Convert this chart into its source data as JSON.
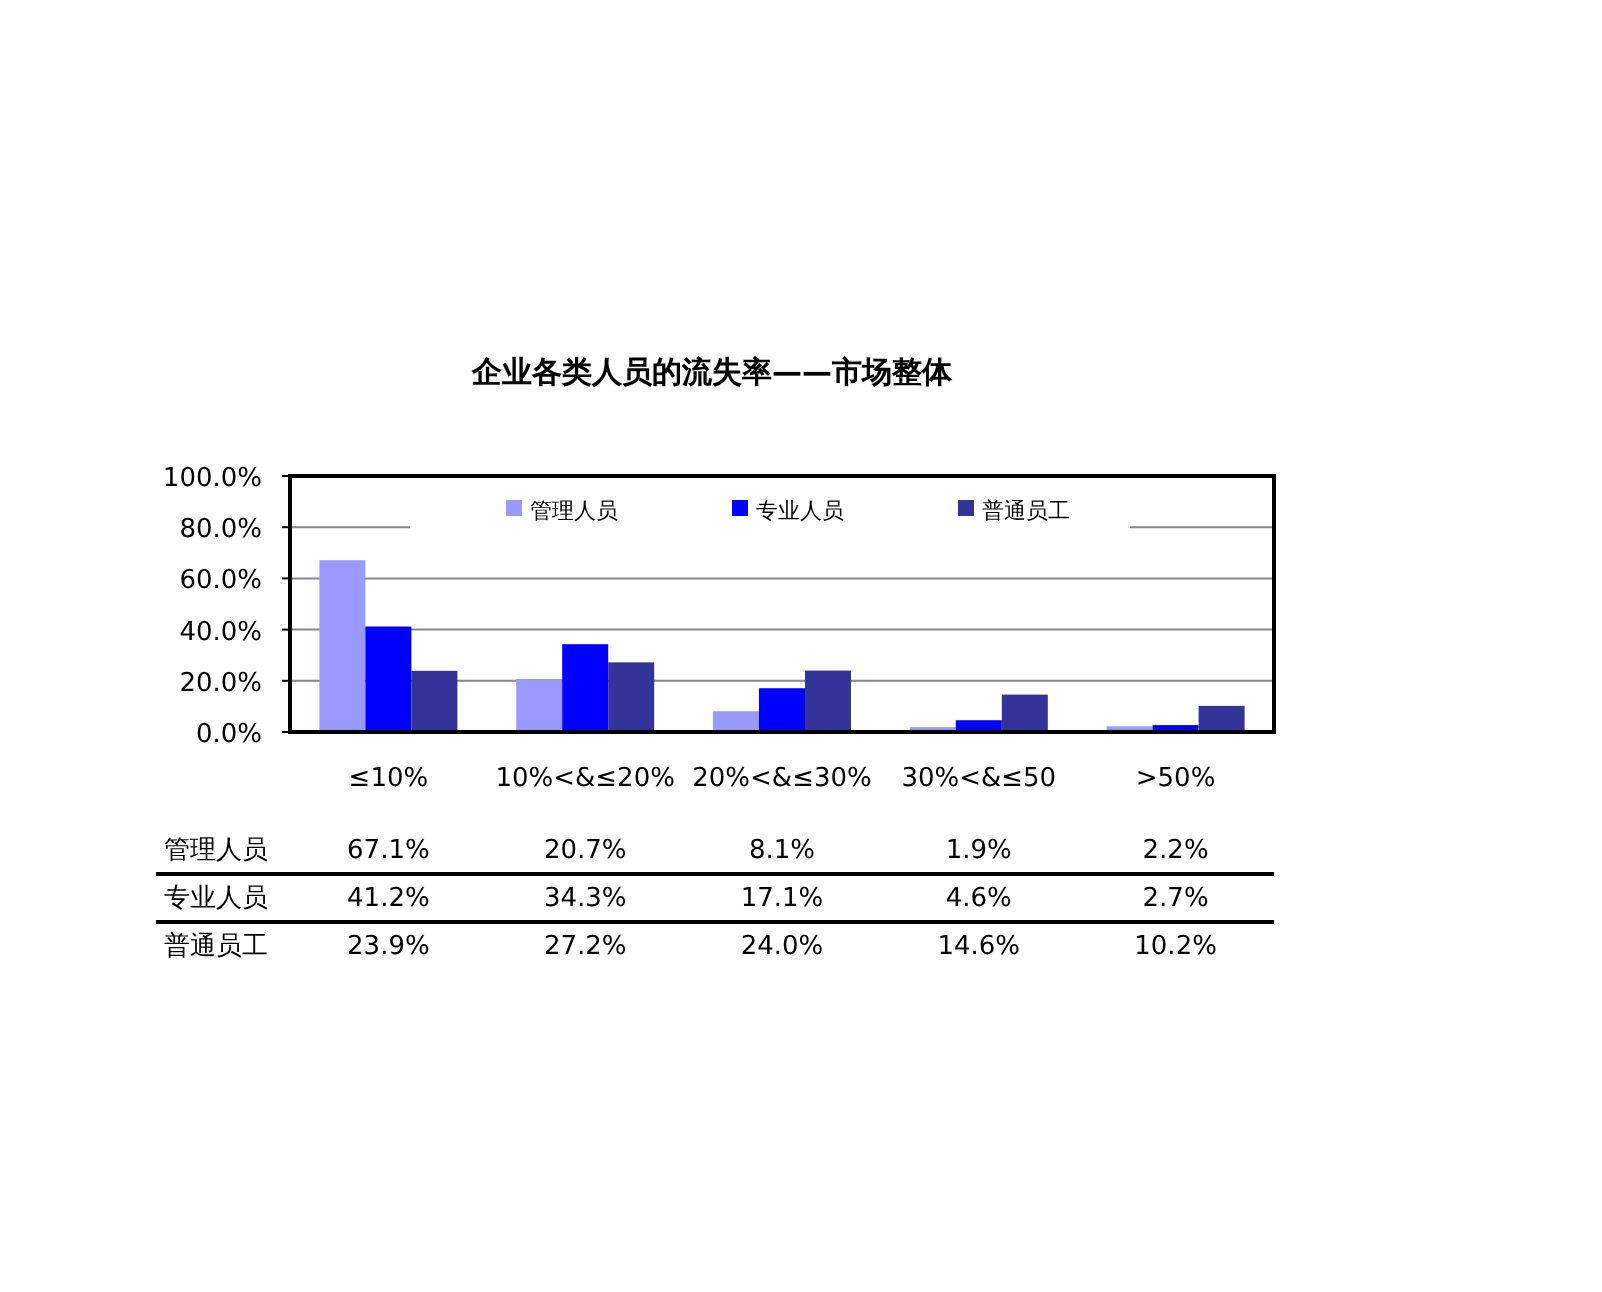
{
  "chart_data": {
    "type": "bar",
    "title": "企业各类人员的流失率——市场整体",
    "categories": [
      "≤10%",
      "10%<&≤20%",
      "20%<&≤30%",
      "30%<&≤50",
      ">50%"
    ],
    "series": [
      {
        "name": "管理人员",
        "color": "#9999ff",
        "values": [
          67.1,
          20.7,
          8.1,
          1.9,
          2.2
        ],
        "value_labels": [
          "67.1%",
          "20.7%",
          "8.1%",
          "1.9%",
          "2.2%"
        ]
      },
      {
        "name": "专业人员",
        "color": "#0000ff",
        "values": [
          41.2,
          34.3,
          17.1,
          4.6,
          2.7
        ],
        "value_labels": [
          "41.2%",
          "34.3%",
          "17.1%",
          "4.6%",
          "2.7%"
        ]
      },
      {
        "name": "普通员工",
        "color": "#333399",
        "values": [
          23.9,
          27.2,
          24.0,
          14.6,
          10.2
        ],
        "value_labels": [
          "23.9%",
          "27.2%",
          "24.0%",
          "14.6%",
          "10.2%"
        ]
      }
    ],
    "ylim": [
      0,
      100
    ],
    "yticks": [
      {
        "value": 0,
        "label": "0.0%"
      },
      {
        "value": 20,
        "label": "20.0%"
      },
      {
        "value": 40,
        "label": "40.0%"
      },
      {
        "value": 60,
        "label": "60.0%"
      },
      {
        "value": 80,
        "label": "80.0%"
      },
      {
        "value": 100,
        "label": "100.0%"
      }
    ],
    "grid": "y",
    "legend": "top"
  }
}
